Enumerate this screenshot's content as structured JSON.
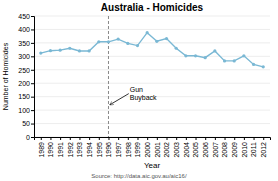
{
  "chart_data": {
    "type": "line",
    "title": "Australia - Homicides",
    "xlabel": "Year",
    "ylabel": "Number of Homicides",
    "source": "Source: http://data.aic.gov.au/aic16/",
    "x": [
      1989,
      1990,
      1991,
      1992,
      1993,
      1994,
      1995,
      1996,
      1997,
      1998,
      1999,
      2000,
      2001,
      2002,
      2003,
      2004,
      2005,
      2006,
      2007,
      2008,
      2009,
      2010,
      2011,
      2012
    ],
    "values": [
      312,
      321,
      323,
      330,
      320,
      320,
      354,
      354,
      364,
      348,
      340,
      388,
      356,
      366,
      330,
      302,
      302,
      295,
      320,
      283,
      283,
      302,
      270,
      261
    ],
    "color": "#7ab8d4",
    "marker": "circle",
    "vlines": [
      {
        "x": 1996,
        "line_style": "dashed"
      }
    ],
    "annotations": [
      {
        "text": "Gun\nBuyback",
        "x": 1998.2,
        "y": 190,
        "arrow_x": 1996.15,
        "arrow_y": 120
      }
    ],
    "xlim": [
      1988.3,
      2012.7
    ],
    "xticks": [
      1989,
      1990,
      1991,
      1992,
      1993,
      1994,
      1995,
      1996,
      1997,
      1998,
      1999,
      2000,
      2001,
      2002,
      2003,
      2004,
      2005,
      2006,
      2007,
      2008,
      2009,
      2010,
      2011,
      2012
    ],
    "ylim": [
      0,
      450
    ],
    "yticks": [
      0,
      50,
      100,
      150,
      200,
      250,
      300,
      350,
      400,
      450
    ],
    "grid": true
  }
}
